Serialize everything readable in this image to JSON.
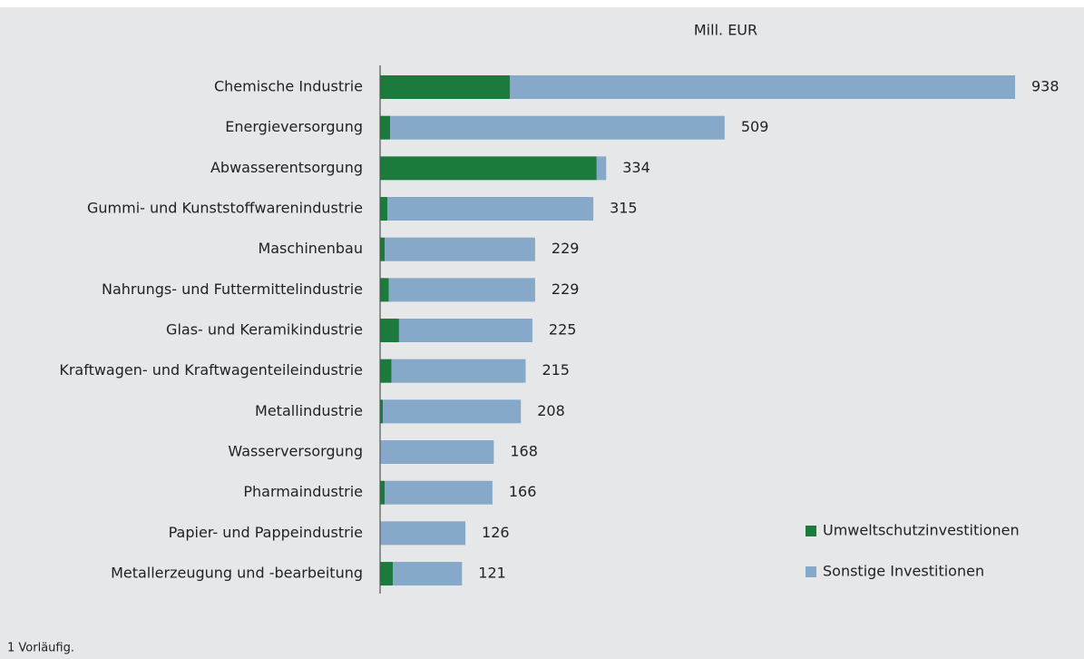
{
  "chart_data": {
    "type": "stacked_barh",
    "unit_label": "Mill. EUR",
    "footnote": "1 Vorläufig.",
    "categories": [
      "Chemische Industrie",
      "Energieversorgung",
      "Abwasserentsorgung",
      "Gummi- und Kunststoffwarenindustrie",
      "Maschinenbau",
      "Nahrungs- und Futtermittelindustrie",
      "Glas- und Keramikindustrie",
      "Kraftwagen- und Kraftwagenteileindustrie",
      "Metallindustrie",
      "Wasserversorgung",
      "Pharmaindustrie",
      "Papier- und Pappeindustrie",
      "Metallerzeugung und -bearbeitung"
    ],
    "series": [
      {
        "name": "Umweltschutzinvestitionen",
        "color": "#1b7a3c",
        "values": [
          192,
          15,
          320,
          11,
          7,
          13,
          28,
          17,
          4,
          1,
          7,
          1,
          19
        ]
      },
      {
        "name": "Sonstige Investitionen",
        "color": "#86a9c9",
        "values": [
          746,
          494,
          14,
          304,
          222,
          216,
          197,
          198,
          204,
          167,
          159,
          125,
          102
        ]
      }
    ],
    "totals": [
      938,
      509,
      334,
      315,
      229,
      229,
      225,
      215,
      208,
      168,
      166,
      126,
      121
    ],
    "xlim": [
      0,
      938
    ],
    "legend": "lower right"
  }
}
